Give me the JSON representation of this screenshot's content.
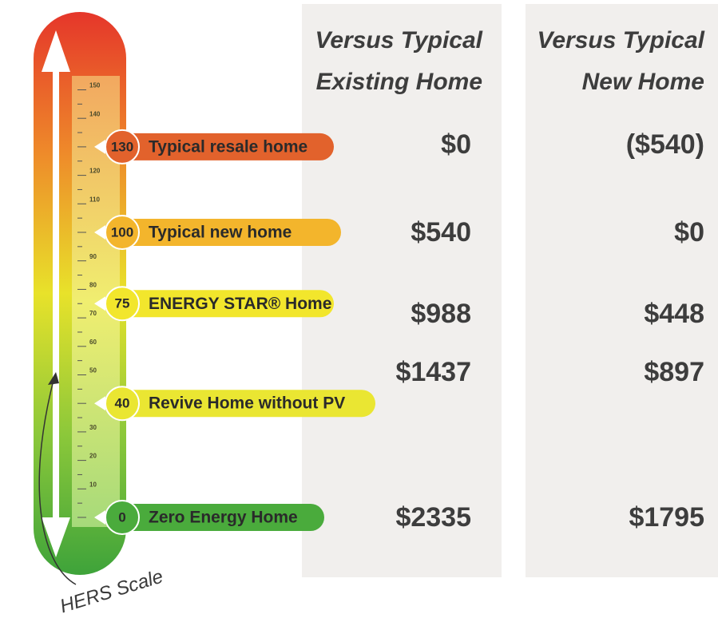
{
  "scale": {
    "ticks": [
      150,
      140,
      120,
      110,
      90,
      80,
      70,
      60,
      50,
      30,
      20,
      10
    ],
    "label": "HERS Scale"
  },
  "markers": [
    {
      "value": 130,
      "label": "Typical resale home"
    },
    {
      "value": 100,
      "label": "Typical new home"
    },
    {
      "value": 75,
      "label": "ENERGY STAR® Home"
    },
    {
      "value": 40,
      "label": "Revive Home without PV"
    },
    {
      "value": 0,
      "label": "Zero Energy Home"
    }
  ],
  "columns": [
    {
      "header": [
        "Versus Typical",
        "Existing Home"
      ],
      "values": [
        "$0",
        "$540",
        "$988",
        "$1437",
        "$2335"
      ]
    },
    {
      "header": [
        "Versus Typical",
        "New Home"
      ],
      "values": [
        "($540)",
        "$0",
        "$448",
        "$897",
        "$1795"
      ]
    }
  ]
}
